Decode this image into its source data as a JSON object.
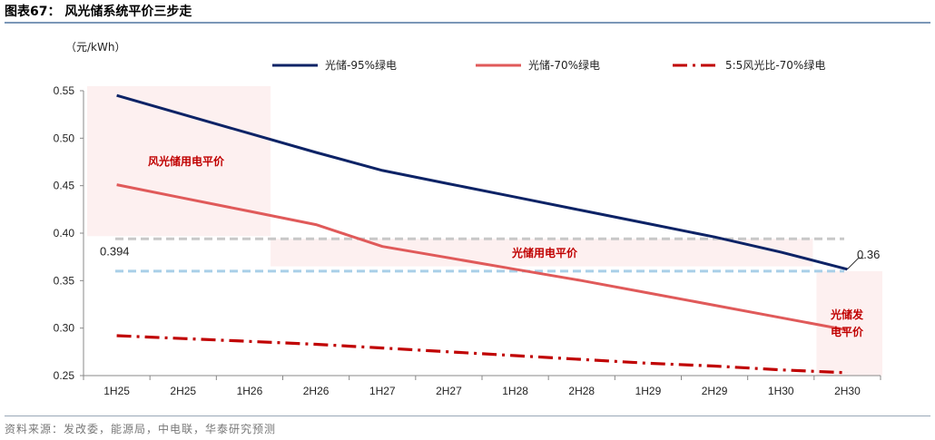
{
  "header": {
    "title": "图表67：  风光储系统平价三步走"
  },
  "footer": {
    "source": "资料来源：发改委，能源局，中电联，华泰研究预测"
  },
  "chart_data": {
    "type": "line",
    "title": "风光储系统平价三步走",
    "ylabel": "（元/kWh）",
    "xlabel": "",
    "ylim": [
      0.25,
      0.55
    ],
    "yticks": [
      0.25,
      0.3,
      0.35,
      0.4,
      0.45,
      0.5,
      0.55
    ],
    "ytick_labels": [
      "0.25",
      "0.30",
      "0.35",
      "0.40",
      "0.45",
      "0.50",
      "0.55"
    ],
    "categories": [
      "1H25",
      "2H25",
      "1H26",
      "2H26",
      "1H27",
      "2H27",
      "1H28",
      "2H28",
      "1H29",
      "2H29",
      "1H30",
      "2H30"
    ],
    "series": [
      {
        "name": "光储-95%绿电",
        "color": "#0d2366",
        "style": "solid",
        "values": [
          0.545,
          0.525,
          0.505,
          0.485,
          0.466,
          0.452,
          0.438,
          0.424,
          0.41,
          0.396,
          0.38,
          0.362
        ]
      },
      {
        "name": "光储-70%绿电",
        "color": "#e05a5a",
        "style": "solid",
        "values": [
          0.451,
          0.437,
          0.423,
          0.409,
          0.386,
          0.374,
          0.362,
          0.35,
          0.337,
          0.324,
          0.311,
          0.298
        ]
      },
      {
        "name": "5:5风光比-70%绿电",
        "color": "#c00000",
        "style": "dashdot",
        "values": [
          0.292,
          0.289,
          0.286,
          0.283,
          0.279,
          0.275,
          0.271,
          0.267,
          0.263,
          0.26,
          0.256,
          0.253
        ]
      }
    ],
    "reference_lines": [
      {
        "value": 0.394,
        "label": "0.394",
        "color": "#c8c8c8"
      },
      {
        "value": 0.36,
        "label": "0.36",
        "color": "#a9cfe8"
      }
    ],
    "annotations": [
      {
        "text": "风光储用电平价",
        "category_range": [
          "1H25",
          "2H26"
        ],
        "y_range": [
          0.394,
          0.55
        ]
      },
      {
        "text": "光储用电平价",
        "category_range": [
          "2H26",
          "2H30"
        ],
        "y_range": [
          0.365,
          0.394
        ]
      },
      {
        "text_lines": [
          "光储发",
          "电平价"
        ],
        "category_range": [
          "2H30",
          "2H30"
        ],
        "y_range": [
          0.25,
          0.36
        ]
      }
    ],
    "legend_position": "top"
  }
}
